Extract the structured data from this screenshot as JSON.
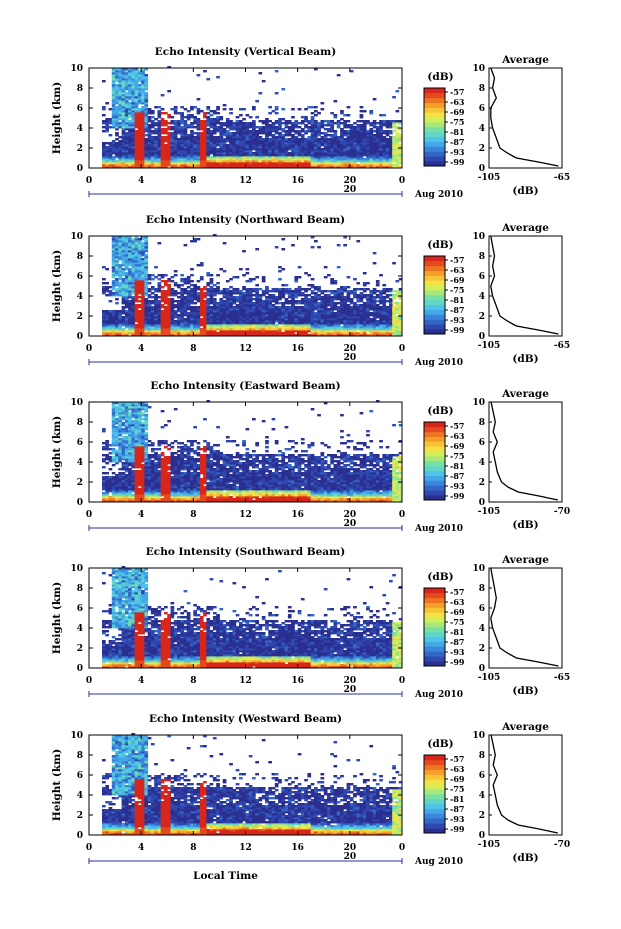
{
  "figure": {
    "xlabel": "Local Time",
    "ylabel": "Height (km)",
    "date_label": "Aug 2010",
    "day_label": "20",
    "x_ticks": [
      "0",
      "4",
      "8",
      "12",
      "16",
      "20",
      "0"
    ],
    "y_ticks": [
      "0",
      "2",
      "4",
      "6",
      "8",
      "10"
    ],
    "colorbar_unit": "(dB)",
    "colorbar_ticks": [
      "-57",
      "-63",
      "-69",
      "-75",
      "-81",
      "-87",
      "-93",
      "-99"
    ],
    "avg_title": "Average",
    "avg_xlabel": "(dB)",
    "colormap": [
      "#2b2f8f",
      "#2f48b0",
      "#3466c9",
      "#3a86dc",
      "#45a7e6",
      "#4dc4e8",
      "#5fd6c8",
      "#79e0a4",
      "#a6e87c",
      "#d3ee5a",
      "#f3e347",
      "#f7c437",
      "#f59f2a",
      "#ee7423",
      "#e44a1d",
      "#d7261b"
    ]
  },
  "chart_data": [
    {
      "type": "heatmap",
      "title": "Echo Intensity (Vertical Beam)",
      "avg_range": [
        "-105",
        "-65"
      ],
      "xlim": [
        0,
        24
      ],
      "ylim": [
        0,
        10
      ],
      "clim": [
        -99,
        -57
      ],
      "avg_profile_dB": [
        [
          0.2,
          -67
        ],
        [
          0.6,
          -78
        ],
        [
          1.0,
          -90
        ],
        [
          1.5,
          -95
        ],
        [
          2.0,
          -99
        ],
        [
          3.0,
          -101
        ],
        [
          4.0,
          -103
        ],
        [
          5.0,
          -104
        ],
        [
          6.0,
          -104
        ],
        [
          7.0,
          -101
        ],
        [
          8.0,
          -103
        ],
        [
          9.0,
          -102
        ],
        [
          10.0,
          -104
        ]
      ]
    },
    {
      "type": "heatmap",
      "title": "Echo Intensity (Northward Beam)",
      "avg_range": [
        "-105",
        "-65"
      ],
      "xlim": [
        0,
        24
      ],
      "ylim": [
        0,
        10
      ],
      "clim": [
        -99,
        -57
      ],
      "avg_profile_dB": [
        [
          0.2,
          -67
        ],
        [
          0.6,
          -78
        ],
        [
          1.0,
          -90
        ],
        [
          1.5,
          -95
        ],
        [
          2.0,
          -99
        ],
        [
          3.0,
          -101
        ],
        [
          4.0,
          -103
        ],
        [
          5.0,
          -104
        ],
        [
          6.0,
          -102
        ],
        [
          7.0,
          -103
        ],
        [
          8.0,
          -102
        ],
        [
          9.0,
          -103
        ],
        [
          10.0,
          -104
        ]
      ]
    },
    {
      "type": "heatmap",
      "title": "Echo Intensity (Eastward Beam)",
      "avg_range": [
        "-105",
        "-70"
      ],
      "xlim": [
        0,
        24
      ],
      "ylim": [
        0,
        10
      ],
      "clim": [
        -99,
        -57
      ],
      "avg_profile_dB": [
        [
          0.2,
          -72
        ],
        [
          0.6,
          -81
        ],
        [
          1.0,
          -91
        ],
        [
          1.5,
          -96
        ],
        [
          2.0,
          -99
        ],
        [
          3.0,
          -101
        ],
        [
          4.0,
          -102
        ],
        [
          5.0,
          -103
        ],
        [
          6.0,
          -101
        ],
        [
          7.0,
          -103
        ],
        [
          8.0,
          -102
        ],
        [
          9.0,
          -103
        ],
        [
          10.0,
          -104
        ]
      ]
    },
    {
      "type": "heatmap",
      "title": "Echo Intensity (Southward Beam)",
      "avg_range": [
        "-105",
        "-65"
      ],
      "xlim": [
        0,
        24
      ],
      "ylim": [
        0,
        10
      ],
      "clim": [
        -99,
        -57
      ],
      "avg_profile_dB": [
        [
          0.2,
          -67
        ],
        [
          0.6,
          -78
        ],
        [
          1.0,
          -90
        ],
        [
          1.5,
          -95
        ],
        [
          2.0,
          -99
        ],
        [
          3.0,
          -101
        ],
        [
          4.0,
          -103
        ],
        [
          5.0,
          -104
        ],
        [
          6.0,
          -102
        ],
        [
          7.0,
          -101
        ],
        [
          8.0,
          -102
        ],
        [
          9.0,
          -103
        ],
        [
          10.0,
          -104
        ]
      ]
    },
    {
      "type": "heatmap",
      "title": "Echo Intensity (Westward Beam)",
      "avg_range": [
        "-105",
        "-70"
      ],
      "xlim": [
        0,
        24
      ],
      "ylim": [
        0,
        10
      ],
      "clim": [
        -99,
        -57
      ],
      "avg_profile_dB": [
        [
          0.2,
          -72
        ],
        [
          0.6,
          -81
        ],
        [
          1.0,
          -91
        ],
        [
          1.5,
          -96
        ],
        [
          2.0,
          -99
        ],
        [
          3.0,
          -101
        ],
        [
          4.0,
          -102
        ],
        [
          5.0,
          -103
        ],
        [
          6.0,
          -101
        ],
        [
          7.0,
          -103
        ],
        [
          8.0,
          -102
        ],
        [
          9.0,
          -103
        ],
        [
          10.0,
          -104
        ]
      ]
    }
  ]
}
